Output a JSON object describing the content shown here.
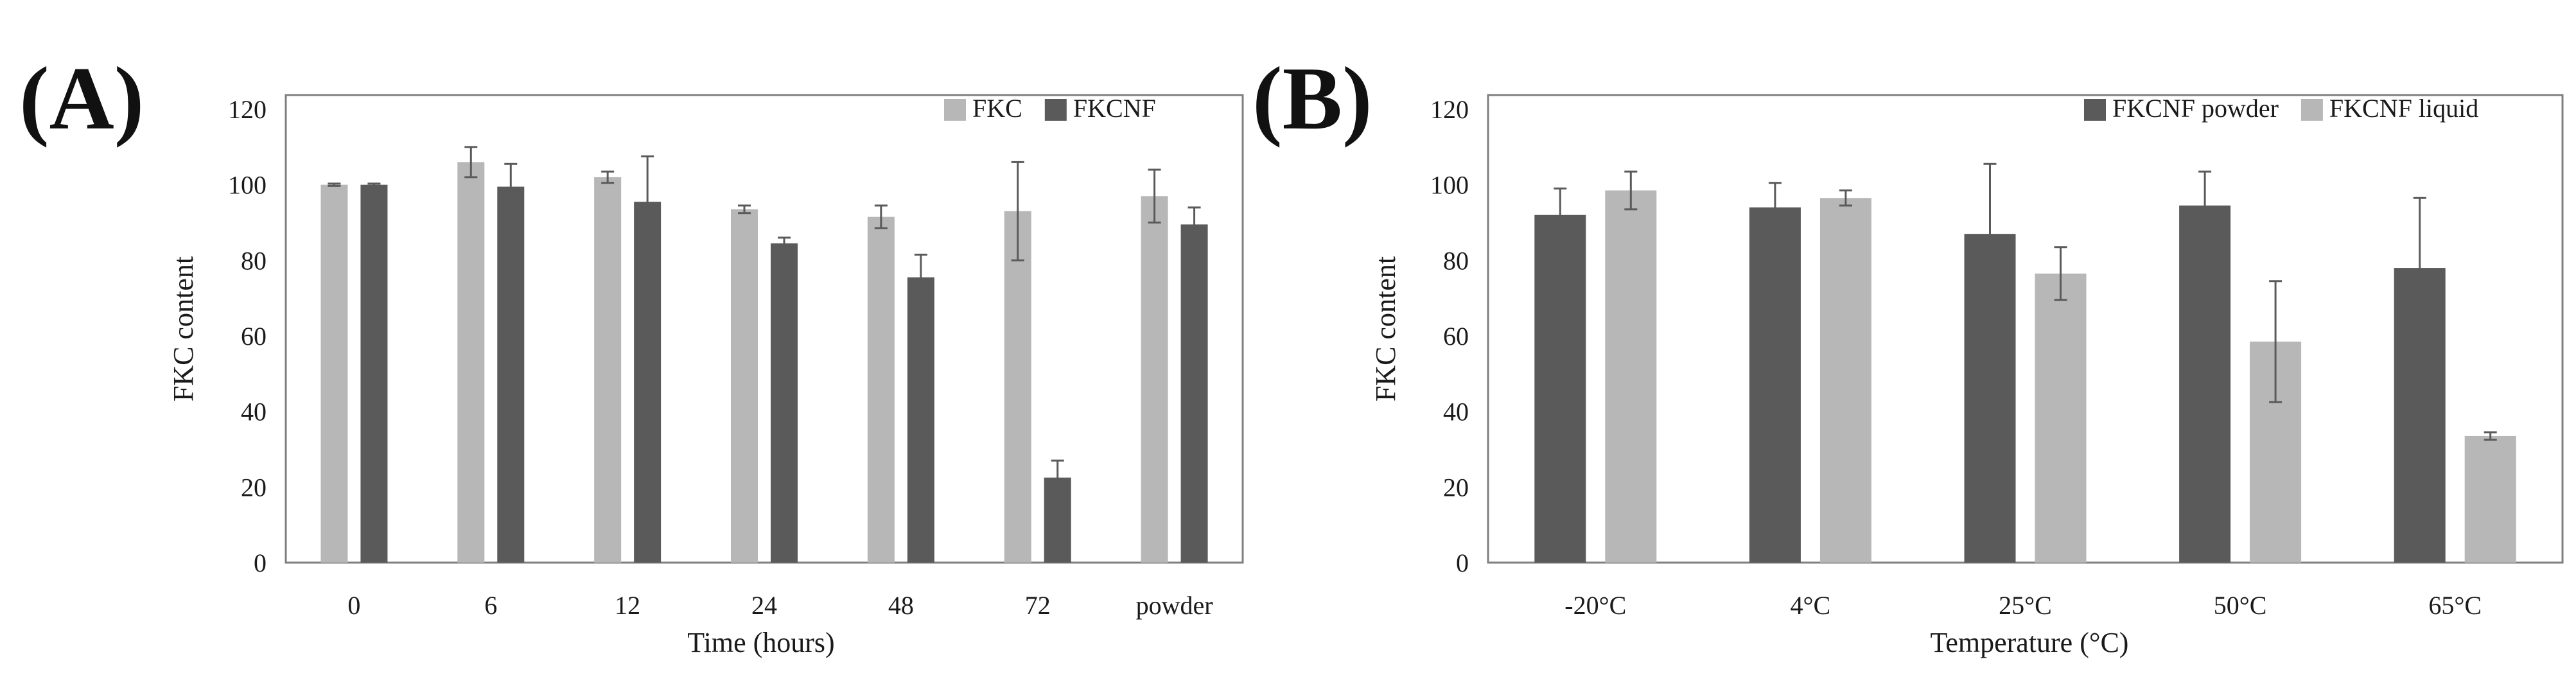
{
  "chart_data": [
    {
      "panel_label": "(A)",
      "type": "bar",
      "title": "",
      "xlabel": "Time (hours)",
      "ylabel": "FKC content",
      "ylim": [
        0,
        120
      ],
      "yticks": [
        0,
        20,
        40,
        60,
        80,
        100,
        120
      ],
      "grid": false,
      "legend_position": "top-right",
      "categories": [
        "0",
        "6",
        "12",
        "24",
        "48",
        "72",
        "powder"
      ],
      "series": [
        {
          "name": "FKC",
          "color": "#b7b7b7",
          "values": [
            100,
            106,
            102,
            93.5,
            91.5,
            93,
            97
          ],
          "errors": [
            0.3,
            4,
            1.5,
            1,
            3,
            13,
            7
          ]
        },
        {
          "name": "FKCNF",
          "color": "#5a5a5a",
          "values": [
            100,
            99.5,
            95.5,
            84.5,
            75.5,
            22.5,
            89.5
          ],
          "errors": [
            0.3,
            6,
            12,
            1.5,
            6,
            4.5,
            4.5
          ]
        }
      ]
    },
    {
      "panel_label": "(B)",
      "type": "bar",
      "title": "",
      "xlabel": "Temperature (°C)",
      "ylabel": "FKC content",
      "ylim": [
        0,
        120
      ],
      "yticks": [
        0,
        20,
        40,
        60,
        80,
        100,
        120
      ],
      "grid": false,
      "legend_position": "top-right",
      "categories": [
        "-20°C",
        "4°C",
        "25°C",
        "50°C",
        "65°C"
      ],
      "series": [
        {
          "name": "FKCNF powder",
          "color": "#5a5a5a",
          "values": [
            92,
            94,
            87,
            94.5,
            78
          ],
          "errors": [
            7,
            6.5,
            18.5,
            9,
            18.5
          ]
        },
        {
          "name": "FKCNF liquid",
          "color": "#b7b7b7",
          "values": [
            98.5,
            96.5,
            76.5,
            58.5,
            33.5
          ],
          "errors": [
            5,
            2,
            7,
            16,
            1
          ]
        }
      ]
    }
  ]
}
